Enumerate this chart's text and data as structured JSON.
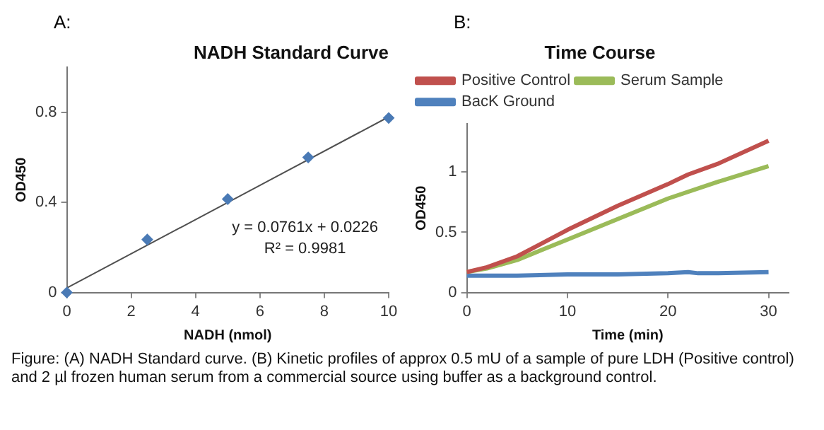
{
  "chart_data": [
    {
      "type": "scatter",
      "title": "NADH Standard Curve",
      "xlabel": "NADH (nmol)",
      "ylabel": "OD450",
      "annotations": [
        "A:",
        "y = 0.0761x + 0.0226",
        "R² = 0.9981"
      ],
      "series": [
        {
          "color": "#4a7ab5",
          "marker": "diamond",
          "x": [
            0,
            2.5,
            5,
            7.5,
            10
          ],
          "values": [
            0,
            0.235,
            0.415,
            0.6,
            0.775
          ]
        },
        {
          "type": "line",
          "color": "#505050",
          "marker": "none",
          "x": [
            0,
            10
          ],
          "values": [
            0.02,
            0.78
          ]
        }
      ],
      "xlim": [
        0,
        10
      ],
      "xticks": [
        0,
        2,
        4,
        6,
        8,
        10
      ],
      "ylim": [
        0,
        1
      ],
      "yticks": [
        0,
        0.4,
        0.8
      ],
      "grid": false,
      "legend": false
    },
    {
      "type": "line",
      "title": "Time Course",
      "xlabel": "Time (min)",
      "ylabel": "OD450",
      "annotations": [
        "B:",
        "Figure: (A) NADH Standard curve. (B) Kinetic profiles of approx 0.5 mU of a sample of pure LDH (Positive control) and 2 µl frozen human serum from a commercial source using buffer as a background control."
      ],
      "series": [
        {
          "name": "Positive Control",
          "color": "#c0504d",
          "x": [
            0,
            2,
            5,
            10,
            15,
            20,
            22,
            25,
            30
          ],
          "values": [
            0.17,
            0.21,
            0.3,
            0.52,
            0.72,
            0.9,
            0.98,
            1.07,
            1.26
          ]
        },
        {
          "name": "Serum Sample",
          "color": "#9bbb59",
          "x": [
            0,
            2,
            5,
            10,
            15,
            20,
            25,
            30
          ],
          "values": [
            0.17,
            0.2,
            0.27,
            0.44,
            0.61,
            0.78,
            0.92,
            1.05
          ]
        },
        {
          "name": "BacK Ground",
          "color": "#4f81bd",
          "x": [
            0,
            5,
            10,
            15,
            20,
            22,
            23,
            25,
            30
          ],
          "values": [
            0.14,
            0.14,
            0.15,
            0.15,
            0.16,
            0.17,
            0.16,
            0.16,
            0.17
          ]
        }
      ],
      "xlim": [
        0,
        32
      ],
      "xticks": [
        0,
        10,
        20,
        30
      ],
      "ylim": [
        0,
        1.4
      ],
      "yticks": [
        0,
        0.5,
        1
      ],
      "grid": false,
      "legend": "top left",
      "marker": "none"
    }
  ]
}
